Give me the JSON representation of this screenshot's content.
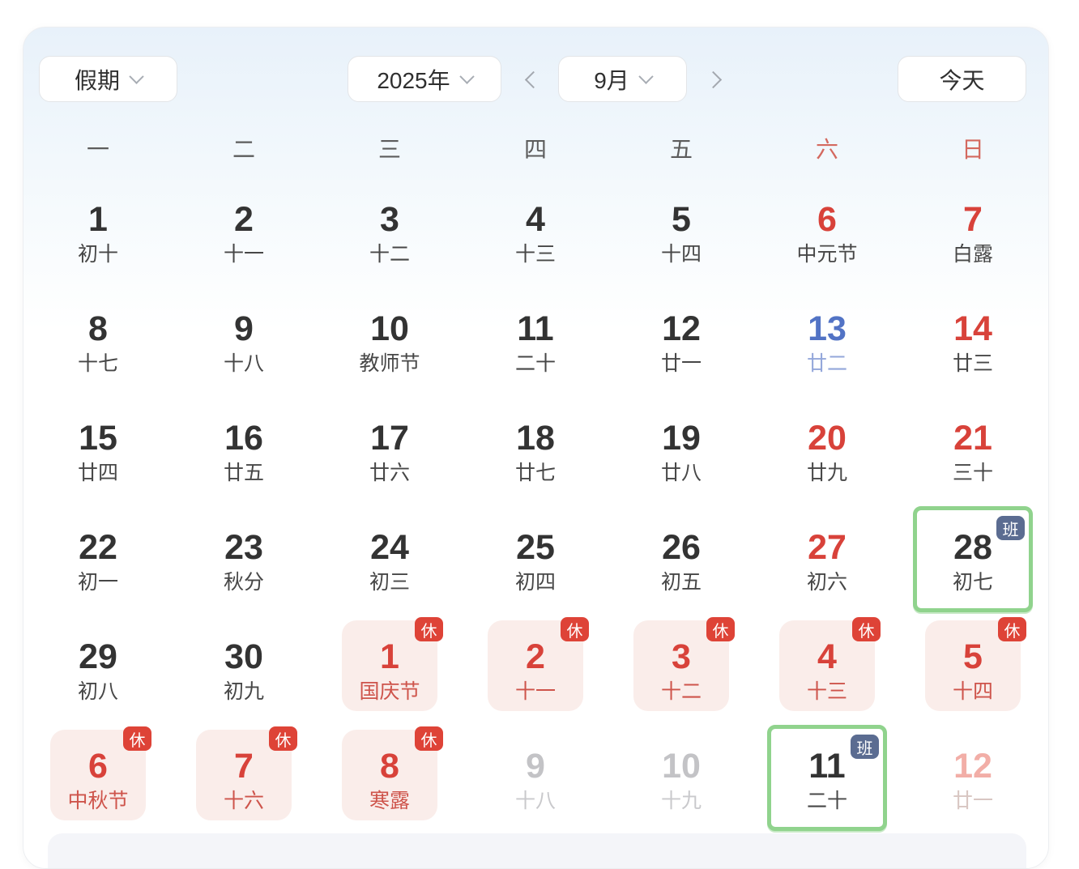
{
  "toolbar": {
    "filter_label": "假期",
    "year_label": "2025年",
    "month_label": "9月",
    "today_label": "今天"
  },
  "weekdays": [
    {
      "label": "一",
      "type": "normal"
    },
    {
      "label": "二",
      "type": "normal"
    },
    {
      "label": "三",
      "type": "normal"
    },
    {
      "label": "四",
      "type": "normal"
    },
    {
      "label": "五",
      "type": "normal"
    },
    {
      "label": "六",
      "type": "weekend"
    },
    {
      "label": "日",
      "type": "weekend"
    }
  ],
  "days": [
    {
      "num": "1",
      "lunar": "初十",
      "type": "normal"
    },
    {
      "num": "2",
      "lunar": "十一",
      "type": "normal"
    },
    {
      "num": "3",
      "lunar": "十二",
      "type": "normal"
    },
    {
      "num": "4",
      "lunar": "十三",
      "type": "normal"
    },
    {
      "num": "5",
      "lunar": "十四",
      "type": "normal"
    },
    {
      "num": "6",
      "lunar": "中元节",
      "type": "red"
    },
    {
      "num": "7",
      "lunar": "白露",
      "type": "red"
    },
    {
      "num": "8",
      "lunar": "十七",
      "type": "normal"
    },
    {
      "num": "9",
      "lunar": "十八",
      "type": "normal"
    },
    {
      "num": "10",
      "lunar": "教师节",
      "type": "normal"
    },
    {
      "num": "11",
      "lunar": "二十",
      "type": "normal"
    },
    {
      "num": "12",
      "lunar": "廿一",
      "type": "normal"
    },
    {
      "num": "13",
      "lunar": "廿二",
      "type": "today"
    },
    {
      "num": "14",
      "lunar": "廿三",
      "type": "red"
    },
    {
      "num": "15",
      "lunar": "廿四",
      "type": "normal"
    },
    {
      "num": "16",
      "lunar": "廿五",
      "type": "normal"
    },
    {
      "num": "17",
      "lunar": "廿六",
      "type": "normal"
    },
    {
      "num": "18",
      "lunar": "廿七",
      "type": "normal"
    },
    {
      "num": "19",
      "lunar": "廿八",
      "type": "normal"
    },
    {
      "num": "20",
      "lunar": "廿九",
      "type": "red"
    },
    {
      "num": "21",
      "lunar": "三十",
      "type": "red"
    },
    {
      "num": "22",
      "lunar": "初一",
      "type": "normal"
    },
    {
      "num": "23",
      "lunar": "秋分",
      "type": "normal"
    },
    {
      "num": "24",
      "lunar": "初三",
      "type": "normal"
    },
    {
      "num": "25",
      "lunar": "初四",
      "type": "normal"
    },
    {
      "num": "26",
      "lunar": "初五",
      "type": "normal"
    },
    {
      "num": "27",
      "lunar": "初六",
      "type": "red"
    },
    {
      "num": "28",
      "lunar": "初七",
      "type": "work",
      "badge": "班"
    },
    {
      "num": "29",
      "lunar": "初八",
      "type": "normal"
    },
    {
      "num": "30",
      "lunar": "初九",
      "type": "normal"
    },
    {
      "num": "1",
      "lunar": "国庆节",
      "type": "rest",
      "badge": "休"
    },
    {
      "num": "2",
      "lunar": "十一",
      "type": "rest",
      "badge": "休"
    },
    {
      "num": "3",
      "lunar": "十二",
      "type": "rest",
      "badge": "休"
    },
    {
      "num": "4",
      "lunar": "十三",
      "type": "rest",
      "badge": "休"
    },
    {
      "num": "5",
      "lunar": "十四",
      "type": "rest",
      "badge": "休"
    },
    {
      "num": "6",
      "lunar": "中秋节",
      "type": "rest",
      "badge": "休"
    },
    {
      "num": "7",
      "lunar": "十六",
      "type": "rest",
      "badge": "休"
    },
    {
      "num": "8",
      "lunar": "寒露",
      "type": "rest",
      "badge": "休"
    },
    {
      "num": "9",
      "lunar": "十八",
      "type": "dim"
    },
    {
      "num": "10",
      "lunar": "十九",
      "type": "dim"
    },
    {
      "num": "11",
      "lunar": "二十",
      "type": "work",
      "badge": "班"
    },
    {
      "num": "12",
      "lunar": "廿一",
      "type": "dimred"
    }
  ],
  "colors": {
    "accent_red": "#d8423a",
    "rest_badge_bg": "#de4337",
    "work_badge_bg": "#5b6c91",
    "work_border_green": "#90d38d",
    "today_blue": "#5273c5",
    "rest_bg_pink": "#faedea",
    "header_gradient_blue": "#e8f1fa"
  }
}
